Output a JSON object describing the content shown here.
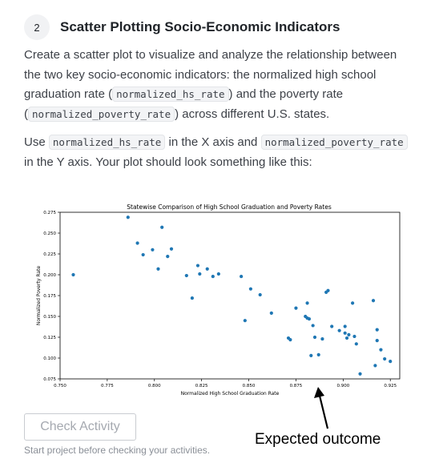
{
  "step": {
    "number": "2",
    "title": "Scatter Plotting Socio-Economic Indicators"
  },
  "intro": {
    "t1": "Create a scatter plot to visualize and analyze the relationship between the two key socio-economic indicators: the normalized high school graduation rate (",
    "code1": "normalized_hs_rate",
    "t2": ") and the poverty rate (",
    "code2": "normalized_poverty_rate",
    "t3": ") across different U.S. states."
  },
  "instructions": {
    "t1": "Use ",
    "code1": "normalized_hs_rate",
    "t2": " in the X axis and ",
    "code2": "normalized_poverty_rate",
    "t3": " in the Y axis. Your plot should look something like this:"
  },
  "check_button_label": "Check Activity",
  "hint_text": "Start project before checking your activities.",
  "annotation": "Expected outcome",
  "colors": {
    "marker": "#1f77b4"
  },
  "chart_data": {
    "type": "scatter",
    "title": "Statewise Comparison of High School Graduation and Poverty Rates",
    "xlabel": "Normalized High School Graduation Rate",
    "ylabel": "Normalized Poverty Rate",
    "xlim": [
      0.75,
      0.93
    ],
    "ylim": [
      0.075,
      0.275
    ],
    "xticks": [
      "0.750",
      "0.775",
      "0.800",
      "0.825",
      "0.850",
      "0.875",
      "0.900",
      "0.925"
    ],
    "yticks": [
      "0.075",
      "0.100",
      "0.125",
      "0.150",
      "0.175",
      "0.200",
      "0.225",
      "0.250",
      "0.275"
    ],
    "grid": false,
    "points": [
      [
        0.757,
        0.2
      ],
      [
        0.786,
        0.269
      ],
      [
        0.791,
        0.238
      ],
      [
        0.794,
        0.224
      ],
      [
        0.799,
        0.23
      ],
      [
        0.802,
        0.207
      ],
      [
        0.804,
        0.257
      ],
      [
        0.807,
        0.222
      ],
      [
        0.809,
        0.231
      ],
      [
        0.817,
        0.199
      ],
      [
        0.82,
        0.172
      ],
      [
        0.823,
        0.211
      ],
      [
        0.824,
        0.201
      ],
      [
        0.828,
        0.207
      ],
      [
        0.831,
        0.198
      ],
      [
        0.834,
        0.201
      ],
      [
        0.846,
        0.198
      ],
      [
        0.848,
        0.145
      ],
      [
        0.851,
        0.183
      ],
      [
        0.856,
        0.176
      ],
      [
        0.862,
        0.154
      ],
      [
        0.871,
        0.124
      ],
      [
        0.872,
        0.122
      ],
      [
        0.875,
        0.16
      ],
      [
        0.88,
        0.15
      ],
      [
        0.881,
        0.148
      ],
      [
        0.881,
        0.166
      ],
      [
        0.882,
        0.147
      ],
      [
        0.883,
        0.103
      ],
      [
        0.884,
        0.139
      ],
      [
        0.885,
        0.125
      ],
      [
        0.887,
        0.104
      ],
      [
        0.889,
        0.123
      ],
      [
        0.891,
        0.179
      ],
      [
        0.892,
        0.181
      ],
      [
        0.894,
        0.138
      ],
      [
        0.898,
        0.133
      ],
      [
        0.901,
        0.138
      ],
      [
        0.901,
        0.13
      ],
      [
        0.902,
        0.124
      ],
      [
        0.903,
        0.128
      ],
      [
        0.905,
        0.166
      ],
      [
        0.906,
        0.126
      ],
      [
        0.907,
        0.117
      ],
      [
        0.909,
        0.081
      ],
      [
        0.916,
        0.169
      ],
      [
        0.917,
        0.091
      ],
      [
        0.918,
        0.121
      ],
      [
        0.918,
        0.134
      ],
      [
        0.92,
        0.11
      ],
      [
        0.922,
        0.099
      ],
      [
        0.925,
        0.096
      ]
    ]
  }
}
